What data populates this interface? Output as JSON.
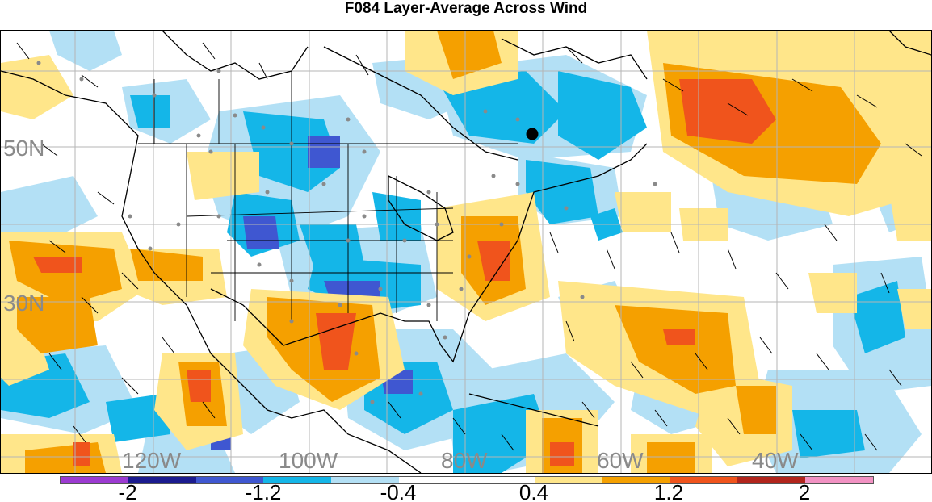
{
  "title": "F084 Layer-Average Across Wind",
  "map": {
    "latitude_labels": [
      "50N",
      "30N"
    ],
    "longitude_labels": [
      "120W",
      "100W",
      "80W",
      "60W",
      "40W"
    ],
    "marker": "black-dot"
  },
  "colorbar": {
    "colors": [
      "#9c3bd1",
      "#1b1b8f",
      "#3f57d1",
      "#14b6e8",
      "#b3e0f5",
      "#ffffff",
      "#ffffff",
      "#ffe68a",
      "#f5a000",
      "#f0541c",
      "#b2251c",
      "#f292c3"
    ],
    "labels": [
      "-2",
      "-1.2",
      "-0.4",
      "0.4",
      "1.2",
      "2"
    ]
  },
  "palette": {
    "light_blue": "#b3e0f5",
    "blue": "#14b6e8",
    "dark_blue": "#3f57d1",
    "navy": "#1b1b8f",
    "light_yellow": "#ffe68a",
    "orange": "#f5a000",
    "red_orange": "#f0541c"
  }
}
